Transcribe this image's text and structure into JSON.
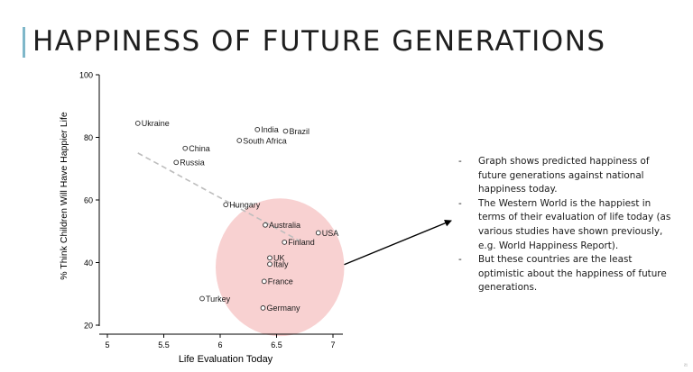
{
  "slide": {
    "title": "HAPPINESS OF FUTURE GENERATIONS",
    "bullets": [
      "Graph shows predicted happiness of future generations against national happiness today.",
      "The Western World is the happiest in terms of their evaluation of life today (as various studies have shown previously, e.g. World Happiness Report).",
      "But these countries are the least optimistic about the happiness of future generations."
    ],
    "corner_mark": "²¹",
    "accent_color": "#7fb7c9",
    "highlight_color": "#f5b8b8",
    "trend_color": "#bdbdbd"
  },
  "chart_data": {
    "type": "scatter",
    "title": "",
    "xlabel": "Life Evaluation Today",
    "ylabel": "% Think Children Will Have Happier Life",
    "xlim": [
      5,
      7
    ],
    "ylim": [
      20,
      100
    ],
    "xticks": [
      5,
      5.5,
      6,
      6.5,
      7
    ],
    "yticks": [
      20,
      40,
      60,
      80,
      100
    ],
    "xtick_labels": [
      "5",
      "5.5",
      "6",
      "6.5",
      "7"
    ],
    "ytick_labels": [
      "20",
      "40",
      "60",
      "80",
      "100"
    ],
    "grid": false,
    "points": [
      {
        "label": "Ukraine",
        "x": 5.27,
        "y": 84.5
      },
      {
        "label": "India",
        "x": 6.33,
        "y": 82.5
      },
      {
        "label": "Brazil",
        "x": 6.58,
        "y": 82
      },
      {
        "label": "South Africa",
        "x": 6.17,
        "y": 79
      },
      {
        "label": "China",
        "x": 5.69,
        "y": 76.5
      },
      {
        "label": "Russia",
        "x": 5.61,
        "y": 72
      },
      {
        "label": "Hungary",
        "x": 6.05,
        "y": 58.5
      },
      {
        "label": "Australia",
        "x": 6.4,
        "y": 52
      },
      {
        "label": "USA",
        "x": 6.87,
        "y": 49.5
      },
      {
        "label": "Finland",
        "x": 6.57,
        "y": 46.5
      },
      {
        "label": "UK",
        "x": 6.44,
        "y": 41.5
      },
      {
        "label": "Italy",
        "x": 6.44,
        "y": 39.5
      },
      {
        "label": "France",
        "x": 6.39,
        "y": 34
      },
      {
        "label": "Turkey",
        "x": 5.84,
        "y": 28.5
      },
      {
        "label": "Germany",
        "x": 6.38,
        "y": 25.5
      }
    ],
    "trend_line": {
      "x": [
        5.27,
        6.7
      ],
      "y": [
        75,
        47
      ]
    },
    "highlight_circle": {
      "cx": 6.53,
      "cy": 38.5,
      "rx": 0.57,
      "ry": 22
    },
    "arrow": {
      "from": "highlight-circle",
      "to": "bullets"
    }
  }
}
